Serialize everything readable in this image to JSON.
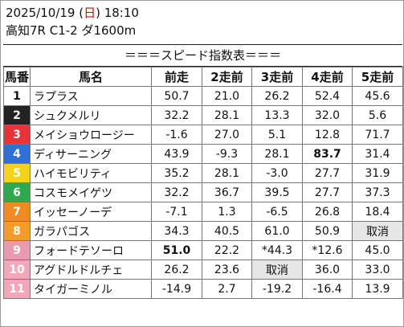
{
  "header": {
    "date_prefix": "2025/10/19 (",
    "day": "日",
    "date_suffix": ") 18:10",
    "race_info": "高知7R C1-2 ダ1600m"
  },
  "subtitle": "＝＝＝スピード指数表＝＝＝",
  "columns": [
    "馬番",
    "馬名",
    "前走",
    "2走前",
    "3走前",
    "4走前",
    "5走前"
  ],
  "rows": [
    {
      "no": "1",
      "bg": "#ffffff",
      "fg": "#111111",
      "name": "ラプラス",
      "v": [
        "50.7",
        "21.0",
        "26.2",
        "52.4",
        "45.6"
      ],
      "cls": [
        "red",
        "",
        "",
        "blue",
        ""
      ]
    },
    {
      "no": "2",
      "bg": "#222222",
      "fg": "#ffffff",
      "name": "シュクメルリ",
      "v": [
        "32.2",
        "28.1",
        "13.3",
        "32.0",
        "5.6"
      ],
      "cls": [
        "",
        "",
        "",
        "",
        ""
      ]
    },
    {
      "no": "3",
      "bg": "#e8333b",
      "fg": "#ffffff",
      "name": "メイショウロージー",
      "v": [
        "-1.6",
        "27.0",
        "5.1",
        "12.8",
        "71.7"
      ],
      "cls": [
        "",
        "",
        "",
        "",
        ""
      ]
    },
    {
      "no": "4",
      "bg": "#2f6fd6",
      "fg": "#ffffff",
      "name": "ディサーニング",
      "v": [
        "43.9",
        "-9.3",
        "28.1",
        "83.7",
        "31.4"
      ],
      "cls": [
        "red",
        "",
        "",
        "blue bold",
        ""
      ]
    },
    {
      "no": "5",
      "bg": "#f2d21b",
      "fg": "#ffffff",
      "name": "ハイモビリティ",
      "v": [
        "35.2",
        "28.1",
        "-3.0",
        "27.7",
        "31.9"
      ],
      "cls": [
        "red",
        "",
        "",
        "",
        ""
      ]
    },
    {
      "no": "6",
      "bg": "#2fa84f",
      "fg": "#ffffff",
      "name": "コスモメイゲツ",
      "v": [
        "32.2",
        "36.7",
        "39.5",
        "27.7",
        "37.3"
      ],
      "cls": [
        "",
        "",
        "",
        "",
        ""
      ]
    },
    {
      "no": "7",
      "bg": "#f08a24",
      "fg": "#ffffff",
      "name": "イッセーノーデ",
      "v": [
        "-7.1",
        "1.3",
        "-6.5",
        "26.8",
        "18.4"
      ],
      "cls": [
        "",
        "",
        "",
        "",
        ""
      ]
    },
    {
      "no": "8",
      "bg": "#f29c2b",
      "fg": "#ffffff",
      "name": "ガラパゴス",
      "v": [
        "34.3",
        "40.5",
        "61.0",
        "50.9",
        "取消"
      ],
      "cls": [
        "red",
        "",
        "blue",
        "blue",
        "gray"
      ]
    },
    {
      "no": "9",
      "bg": "#e89ab0",
      "fg": "#ffffff",
      "name": "フォードテソーロ",
      "v": [
        "51.0",
        "22.2",
        "*44.3",
        "*12.6",
        "45.0"
      ],
      "cls": [
        "red bold",
        "",
        "blue",
        "",
        ""
      ]
    },
    {
      "no": "10",
      "bg": "#f4a7b9",
      "fg": "#ffffff",
      "name": "アグドルドルチェ",
      "v": [
        "26.2",
        "23.6",
        "取消",
        "36.0",
        "33.0"
      ],
      "cls": [
        "",
        "",
        "gray",
        "",
        ""
      ]
    },
    {
      "no": "11",
      "bg": "#f4a7b9",
      "fg": "#ffffff",
      "name": "タイガーミノル",
      "v": [
        "-14.9",
        "2.7",
        "-19.2",
        "-16.4",
        "13.9"
      ],
      "cls": [
        "",
        "",
        "",
        "",
        ""
      ]
    }
  ]
}
